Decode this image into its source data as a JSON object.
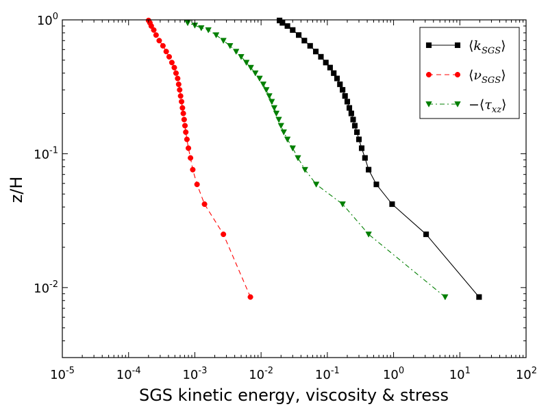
{
  "chart_data": {
    "type": "line",
    "title": "",
    "xlabel": "SGS kinetic energy, viscosity & stress",
    "ylabel": "z/H",
    "xscale": "log",
    "yscale": "log",
    "xlim": [
      1e-05,
      100
    ],
    "ylim": [
      0.003,
      1
    ],
    "x_ticks": [
      {
        "value": 1e-05,
        "base": "10",
        "exp": "-5"
      },
      {
        "value": 0.0001,
        "base": "10",
        "exp": "-4"
      },
      {
        "value": 0.001,
        "base": "10",
        "exp": "-3"
      },
      {
        "value": 0.01,
        "base": "10",
        "exp": "-2"
      },
      {
        "value": 0.1,
        "base": "10",
        "exp": "-1"
      },
      {
        "value": 1,
        "base": "10",
        "exp": "0"
      },
      {
        "value": 10,
        "base": "10",
        "exp": "1"
      },
      {
        "value": 100,
        "base": "10",
        "exp": "2"
      }
    ],
    "y_ticks": [
      {
        "value": 0.01,
        "base": "10",
        "exp": "-2"
      },
      {
        "value": 0.1,
        "base": "10",
        "exp": "-1"
      },
      {
        "value": 1,
        "base": "10",
        "exp": "0"
      }
    ],
    "grid": false,
    "legend_position": "top-right",
    "series": [
      {
        "name": "⟨k_SGS⟩",
        "legend_main": "k",
        "legend_sub": "SGS",
        "legend_prefix": "",
        "color": "#000000",
        "marker": "square",
        "line_style": "solid",
        "x": [
          19.5,
          3.1,
          0.95,
          0.55,
          0.42,
          0.37,
          0.33,
          0.3,
          0.28,
          0.26,
          0.245,
          0.23,
          0.215,
          0.2,
          0.185,
          0.17,
          0.155,
          0.14,
          0.125,
          0.11,
          0.095,
          0.08,
          0.067,
          0.055,
          0.045,
          0.037,
          0.03,
          0.025,
          0.021,
          0.019
        ],
        "y": [
          0.0085,
          0.025,
          0.042,
          0.059,
          0.076,
          0.093,
          0.11,
          0.128,
          0.145,
          0.162,
          0.18,
          0.2,
          0.22,
          0.245,
          0.27,
          0.3,
          0.33,
          0.365,
          0.4,
          0.44,
          0.48,
          0.53,
          0.58,
          0.64,
          0.7,
          0.77,
          0.84,
          0.9,
          0.95,
          0.99
        ]
      },
      {
        "name": "⟨ν_SGS⟩",
        "legend_main": "ν",
        "legend_sub": "SGS",
        "legend_prefix": "",
        "color": "#ff0000",
        "marker": "circle",
        "line_style": "dashed",
        "x": [
          0.0069,
          0.0027,
          0.0014,
          0.00108,
          0.00093,
          0.00086,
          0.0008,
          0.00076,
          0.00073,
          0.00071,
          0.00069,
          0.00067,
          0.00065,
          0.00063,
          0.00061,
          0.00059,
          0.00057,
          0.00055,
          0.00052,
          0.00049,
          0.00045,
          0.00041,
          0.00037,
          0.00033,
          0.00029,
          0.00026,
          0.00024,
          0.00022,
          0.00021,
          0.0002
        ],
        "y": [
          0.0085,
          0.025,
          0.042,
          0.059,
          0.076,
          0.093,
          0.11,
          0.128,
          0.145,
          0.162,
          0.18,
          0.2,
          0.22,
          0.245,
          0.27,
          0.3,
          0.33,
          0.365,
          0.4,
          0.44,
          0.48,
          0.53,
          0.58,
          0.64,
          0.7,
          0.77,
          0.84,
          0.9,
          0.95,
          0.99
        ]
      },
      {
        "name": "−⟨τ_xz⟩",
        "legend_main": "τ",
        "legend_sub": "xz",
        "legend_prefix": "−",
        "color": "#007f00",
        "marker": "triangle-down",
        "line_style": "dashdot",
        "x": [
          6.0,
          0.42,
          0.17,
          0.068,
          0.046,
          0.036,
          0.03,
          0.025,
          0.022,
          0.02,
          0.0185,
          0.017,
          0.0158,
          0.0145,
          0.0133,
          0.012,
          0.0108,
          0.0095,
          0.0082,
          0.007,
          0.006,
          0.005,
          0.0042,
          0.0034,
          0.0027,
          0.0021,
          0.0016,
          0.00125,
          0.001,
          0.00078
        ],
        "y": [
          0.0085,
          0.025,
          0.042,
          0.059,
          0.076,
          0.093,
          0.11,
          0.128,
          0.145,
          0.162,
          0.18,
          0.2,
          0.22,
          0.245,
          0.27,
          0.3,
          0.33,
          0.365,
          0.4,
          0.44,
          0.48,
          0.53,
          0.58,
          0.64,
          0.7,
          0.77,
          0.84,
          0.87,
          0.91,
          0.95
        ]
      }
    ]
  }
}
